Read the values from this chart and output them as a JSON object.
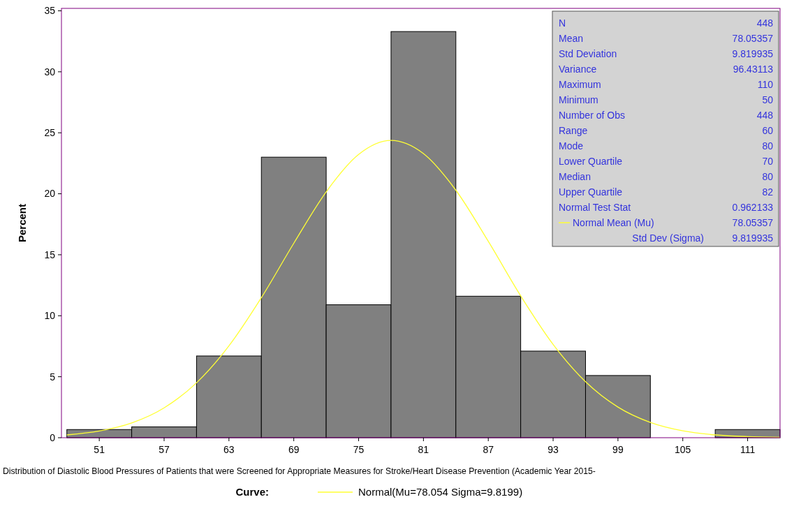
{
  "chart_data": {
    "type": "histogram",
    "ylabel": "Percent",
    "xlabel": "Distribution of Diastolic Blood Pressures of Patients that were Screened for Appropriate Measures for Stroke/Heart Disease Prevention (Academic Year 2015-",
    "bins": [
      48,
      54,
      60,
      66,
      72,
      78,
      84,
      90,
      96,
      102,
      108,
      114
    ],
    "values": [
      0.67,
      0.89,
      6.7,
      23,
      10.9,
      33.3,
      11.6,
      7.1,
      5.1,
      0,
      0.67
    ],
    "color": "#808080",
    "xlim": [
      47.5,
      114
    ],
    "ylim": [
      0,
      35.2
    ],
    "xticks": [
      51,
      57,
      63,
      69,
      75,
      81,
      87,
      93,
      99,
      105,
      111
    ],
    "yticks": [
      0,
      5,
      10,
      15,
      20,
      25,
      30,
      35
    ],
    "grid": false,
    "legend": "bottom",
    "legend_title": "Curve:",
    "series": [
      {
        "type": "line",
        "name": "Normal(Mu=78.054 Sigma=9.8199)",
        "color": "#ffff33",
        "x": [
          48,
          51,
          54,
          57,
          60,
          63,
          66,
          69,
          72,
          75,
          78,
          81,
          84,
          87,
          90,
          93,
          96,
          99,
          102,
          105,
          108,
          111,
          114
        ],
        "values": [
          0.23,
          0.55,
          1.21,
          2.45,
          4.5,
          7.53,
          11.48,
          15.94,
          20.16,
          23.23,
          24.38,
          23.3,
          20.29,
          16.1,
          11.63,
          7.65,
          4.59,
          2.51,
          1.25,
          0.56,
          0.23,
          0.09,
          0.03
        ]
      }
    ],
    "annotations": [
      "N",
      "448",
      "Mean",
      "78.05357",
      "Std Deviation",
      "9.819935",
      "Variance",
      "96.43113",
      "Maximum",
      "110",
      "Minimum",
      "50",
      "Number of Obs",
      "448",
      "Range",
      "60",
      "Mode",
      "80",
      "Lower Quartile",
      "70",
      "Median",
      "80",
      "Upper Quartile",
      "82",
      "Normal Test Stat",
      "0.962133",
      "Normal Mean (Mu)",
      "78.05357",
      "Std Dev (Sigma)",
      "9.819935"
    ]
  }
}
